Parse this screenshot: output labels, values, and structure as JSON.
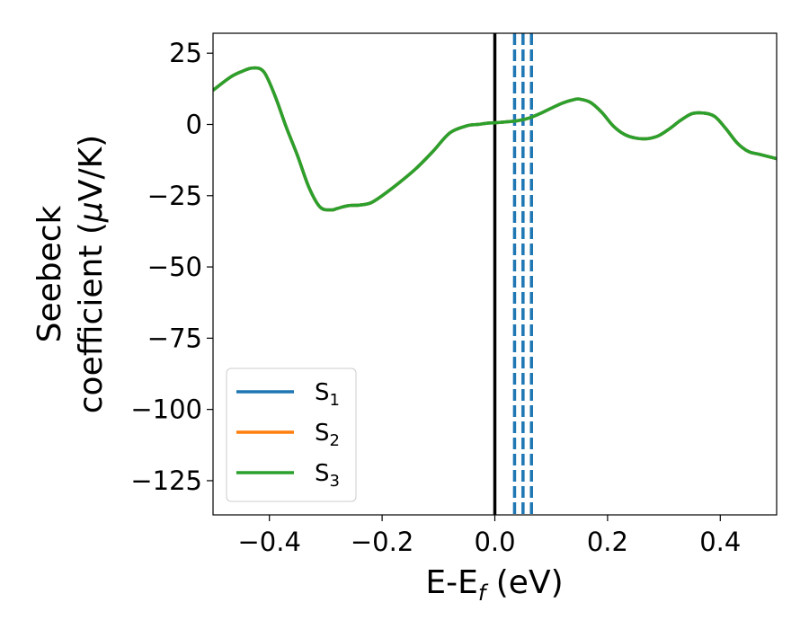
{
  "chart_data": {
    "type": "line",
    "title": "",
    "xlabel": {
      "main": "E-E",
      "sub": "f",
      "unit": " (eV)"
    },
    "ylabel": {
      "line1": "Seebeck",
      "line2_prefix": "coefficient  (",
      "mu": "μ",
      "line2_suffix": "V/K)"
    },
    "xlim": [
      -0.5,
      0.5
    ],
    "ylim": [
      -137,
      32
    ],
    "x_ticks": [
      -0.4,
      -0.2,
      0.0,
      0.2,
      0.4
    ],
    "x_tick_labels": [
      "−0.4",
      "−0.2",
      "0.0",
      "0.2",
      "0.4"
    ],
    "y_ticks": [
      25,
      0,
      -25,
      -50,
      -75,
      -100,
      -125
    ],
    "y_tick_labels": [
      "25",
      "0",
      "−25",
      "−50",
      "−75",
      "−100",
      "−125"
    ],
    "grid": false,
    "legend_position": "lower-left",
    "vertical_lines": [
      {
        "x": 0.0,
        "color": "#000000",
        "style": "solid"
      },
      {
        "x": 0.035,
        "color": "#1f77b4",
        "style": "dashed"
      },
      {
        "x": 0.05,
        "color": "#1f77b4",
        "style": "dashed"
      },
      {
        "x": 0.065,
        "color": "#1f77b4",
        "style": "dashed"
      }
    ],
    "x": [
      -0.5,
      -0.47,
      -0.45,
      -0.43,
      -0.41,
      -0.39,
      -0.37,
      -0.35,
      -0.33,
      -0.31,
      -0.29,
      -0.28,
      -0.26,
      -0.24,
      -0.22,
      -0.2,
      -0.17,
      -0.14,
      -0.11,
      -0.08,
      -0.05,
      -0.03,
      -0.01,
      0.0,
      0.02,
      0.04,
      0.06,
      0.08,
      0.1,
      0.12,
      0.14,
      0.15,
      0.17,
      0.19,
      0.21,
      0.23,
      0.25,
      0.27,
      0.29,
      0.31,
      0.33,
      0.35,
      0.37,
      0.39,
      0.41,
      0.43,
      0.45,
      0.47,
      0.5
    ],
    "series": [
      {
        "name": "S",
        "sub": "1",
        "color": "#1f77b4",
        "values": [
          12,
          16.5,
          18.5,
          19.8,
          18.5,
          10,
          -1,
          -11,
          -22,
          -29,
          -30,
          -29.5,
          -28.5,
          -28.3,
          -27.5,
          -25,
          -20.5,
          -15.5,
          -9.5,
          -3,
          -0.5,
          0,
          0.5,
          0.6,
          0.9,
          1.3,
          2.2,
          3.8,
          5.7,
          7.5,
          8.7,
          8.9,
          7.7,
          4.2,
          -0.5,
          -3.5,
          -4.8,
          -5,
          -4,
          -1.5,
          1.5,
          3.8,
          4,
          2.8,
          -1.5,
          -6.5,
          -9.5,
          -10.5,
          -12
        ]
      },
      {
        "name": "S",
        "sub": "2",
        "color": "#ff7f0e",
        "values": [
          12,
          16.5,
          18.5,
          19.8,
          18.5,
          10,
          -1,
          -11,
          -22,
          -29,
          -30,
          -29.5,
          -28.5,
          -28.3,
          -27.5,
          -25,
          -20.5,
          -15.5,
          -9.5,
          -3,
          -0.5,
          0,
          0.5,
          0.6,
          0.9,
          1.3,
          2.2,
          3.8,
          5.7,
          7.5,
          8.7,
          8.9,
          7.7,
          4.2,
          -0.5,
          -3.5,
          -4.8,
          -5,
          -4,
          -1.5,
          1.5,
          3.8,
          4,
          2.8,
          -1.5,
          -6.5,
          -9.5,
          -10.5,
          -12
        ]
      },
      {
        "name": "S",
        "sub": "3",
        "color": "#2ca02c",
        "values": [
          12,
          16.5,
          18.5,
          19.8,
          18.5,
          10,
          -1,
          -11,
          -22,
          -29,
          -30,
          -29.5,
          -28.5,
          -28.3,
          -27.5,
          -25,
          -20.5,
          -15.5,
          -9.5,
          -3,
          -0.5,
          0,
          0.5,
          0.6,
          0.9,
          1.3,
          2.2,
          3.8,
          5.7,
          7.5,
          8.7,
          8.9,
          7.7,
          4.2,
          -0.5,
          -3.5,
          -4.8,
          -5,
          -4,
          -1.5,
          1.5,
          3.8,
          4,
          2.8,
          -1.5,
          -6.5,
          -9.5,
          -10.5,
          -12
        ]
      }
    ]
  }
}
